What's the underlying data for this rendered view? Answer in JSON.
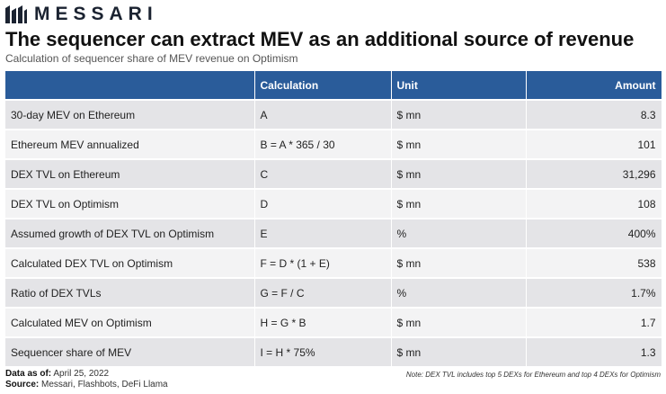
{
  "brand": {
    "name": "MESSARI"
  },
  "title": "The sequencer can extract MEV as an additional source of revenue",
  "subtitle": "Calculation of sequencer share of MEV revenue on Optimism",
  "table": {
    "headers": [
      "",
      "Calculation",
      "Unit",
      "Amount"
    ],
    "rows": [
      [
        "30-day MEV on Ethereum",
        "A",
        "$ mn",
        "8.3"
      ],
      [
        "Ethereum MEV annualized",
        "B = A * 365 / 30",
        "$ mn",
        "101"
      ],
      [
        "DEX TVL on Ethereum",
        "C",
        "$ mn",
        "31,296"
      ],
      [
        "DEX TVL on Optimism",
        "D",
        "$ mn",
        "108"
      ],
      [
        "Assumed growth of DEX TVL on Optimism",
        "E",
        "%",
        "400%"
      ],
      [
        "Calculated DEX TVL on Optimism",
        "F = D * (1 + E)",
        "$ mn",
        "538"
      ],
      [
        "Ratio of DEX TVLs",
        "G = F / C",
        "%",
        "1.7%"
      ],
      [
        "Calculated MEV on Optimism",
        "H = G * B",
        "$ mn",
        "1.7"
      ],
      [
        "Sequencer share of MEV",
        "I = H * 75%",
        "$ mn",
        "1.3"
      ]
    ]
  },
  "footer": {
    "data_as_of_label": "Data as of:",
    "data_as_of_value": "April 25, 2022",
    "source_label": "Source:",
    "source_value": "Messari, Flashbots, DeFi Llama",
    "note": "Note: DEX TVL includes top 5 DEXs for Ethereum and top 4 DEXs for Optimism"
  },
  "colors": {
    "header_bg": "#2a5c9a",
    "row_dark": "#e4e4e7",
    "row_light": "#f3f3f4"
  }
}
